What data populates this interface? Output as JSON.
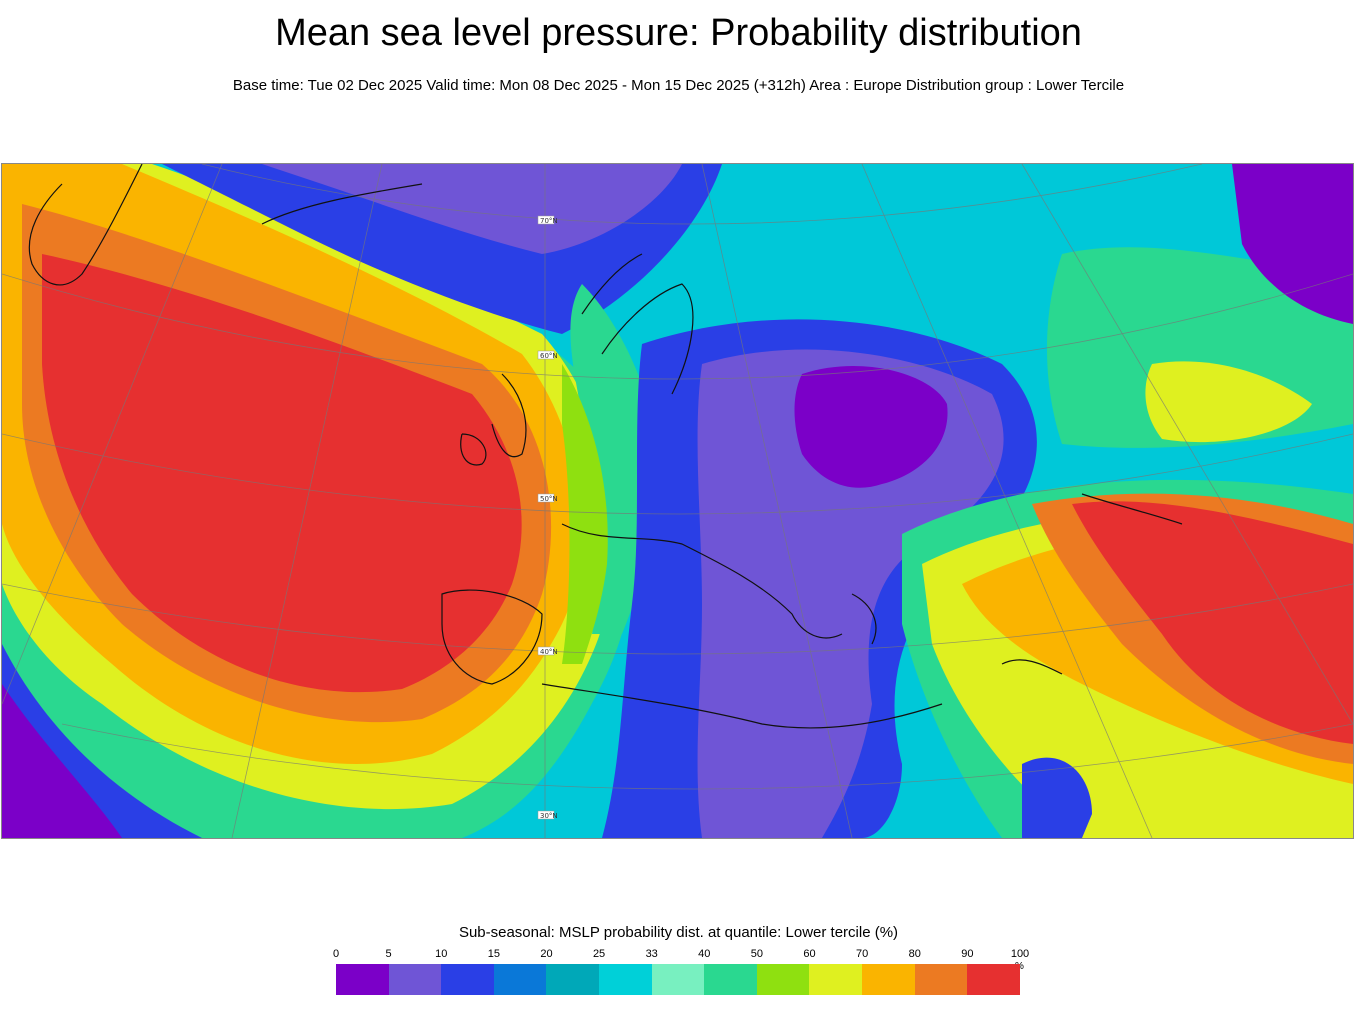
{
  "header": {
    "title": "Mean sea level pressure: Probability distribution",
    "subtitle": "Base time: Tue 02 Dec 2025 Valid time: Mon 08 Dec 2025 - Mon 15 Dec 2025 (+312h) Area : Europe Distribution group : Lower Tercile"
  },
  "map": {
    "latitude_labels": [
      "70°N",
      "60°N",
      "50°N",
      "40°N",
      "30°N"
    ]
  },
  "legend": {
    "title": "Sub-seasonal: MSLP probability dist. at quantile: Lower tercile (%)",
    "unit": "%",
    "ticks": [
      "0",
      "5",
      "10",
      "15",
      "20",
      "25",
      "33",
      "40",
      "50",
      "60",
      "70",
      "80",
      "90",
      "100"
    ],
    "colors": [
      "#7b00c8",
      "#6f55d6",
      "#2a3fe6",
      "#0a78d8",
      "#00a8b8",
      "#00d0d8",
      "#78f0c0",
      "#2ad890",
      "#8fe010",
      "#dff020",
      "#fab400",
      "#ec7a22",
      "#e63030"
    ]
  }
}
